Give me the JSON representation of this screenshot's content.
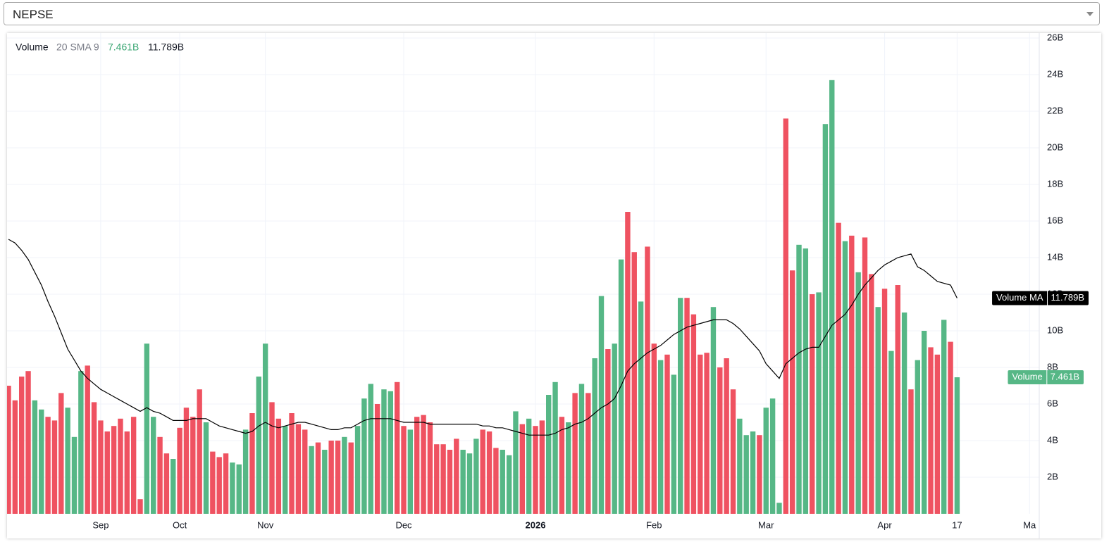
{
  "symbol": "NEPSE",
  "chart_data": {
    "type": "bar",
    "legend_params": "20 SMA 9",
    "categories": [
      null,
      null,
      null,
      null,
      null,
      null,
      null,
      null,
      null,
      null,
      null,
      null,
      null,
      null,
      "Sep",
      null,
      null,
      null,
      null,
      null,
      null,
      null,
      null,
      null,
      null,
      null,
      "Oct",
      null,
      null,
      null,
      null,
      null,
      null,
      null,
      null,
      null,
      null,
      null,
      null,
      "Nov",
      null,
      null,
      null,
      null,
      null,
      null,
      null,
      null,
      null,
      null,
      null,
      null,
      null,
      null,
      null,
      null,
      null,
      null,
      null,
      null,
      "Dec",
      null,
      null,
      null,
      null,
      null,
      null,
      null,
      null,
      null,
      null,
      null,
      null,
      null,
      null,
      null,
      null,
      null,
      null,
      null,
      "2026",
      null,
      null,
      null,
      null,
      null,
      null,
      null,
      null,
      null,
      null,
      null,
      null,
      null,
      null,
      null,
      null,
      null,
      "Feb",
      null,
      null,
      null,
      null,
      null,
      null,
      null,
      null,
      null,
      null,
      null,
      null,
      null,
      null,
      null,
      null,
      "Mar",
      null,
      null,
      null,
      null,
      null,
      null,
      null,
      null,
      null,
      null,
      null,
      null,
      null,
      null,
      null,
      null,
      null,
      "Apr",
      null,
      null,
      null,
      null,
      null,
      null,
      null,
      null,
      null,
      null,
      "17",
      null,
      null,
      null,
      null,
      null,
      null,
      null,
      null,
      null,
      null,
      "Ma",
      null
    ],
    "series": [
      {
        "name": "Volume",
        "type": "bar",
        "values": [
          7.0,
          6.2,
          7.5,
          7.8,
          6.2,
          5.7,
          5.3,
          5.1,
          6.6,
          5.8,
          4.2,
          7.8,
          8.1,
          6.1,
          5.1,
          4.5,
          4.8,
          5.2,
          4.5,
          5.3,
          0.8,
          9.3,
          5.3,
          4.2,
          3.3,
          3.0,
          4.7,
          5.8,
          5.3,
          6.8,
          5.0,
          3.4,
          3.1,
          3.3,
          2.8,
          2.7,
          4.6,
          5.5,
          7.5,
          9.3,
          6.1,
          5.2,
          4.8,
          5.5,
          4.9,
          4.6,
          3.7,
          3.9,
          3.5,
          4.0,
          4.0,
          4.2,
          3.9,
          4.8,
          6.3,
          7.1,
          6.0,
          6.8,
          6.7,
          7.2,
          4.8,
          4.6,
          5.3,
          5.4,
          5.0,
          3.8,
          3.8,
          3.5,
          4.1,
          3.5,
          3.3,
          4.1,
          4.6,
          4.5,
          3.6,
          3.5,
          3.2,
          5.6,
          4.9,
          5.2,
          4.8,
          5.1,
          6.5,
          7.2,
          5.3,
          5.0,
          6.6,
          7.1,
          6.6,
          8.5,
          11.9,
          9.0,
          9.3,
          13.9,
          16.5,
          14.3,
          11.6,
          14.6,
          9.3,
          8.4,
          8.7,
          7.6,
          11.8,
          11.8,
          10.9,
          8.7,
          8.8,
          11.3,
          8.0,
          8.5,
          6.8,
          5.2,
          4.3,
          4.5,
          4.3,
          5.8,
          6.3,
          0.6,
          21.6,
          13.3,
          14.7,
          14.5,
          12.0,
          12.1,
          21.3,
          23.7,
          15.9,
          14.9,
          15.2,
          13.2,
          15.1,
          13.1,
          11.3,
          12.3,
          8.9,
          12.5,
          11.0,
          6.8,
          8.4,
          10.0,
          9.1,
          8.7,
          10.6,
          9.4,
          7.461,
          null,
          null,
          null,
          null,
          null,
          null,
          null,
          null,
          null,
          null,
          null,
          null
        ],
        "colors": [
          "#ef5261",
          "#ef5261",
          "#ef5261",
          "#ef5261",
          "#56b786",
          "#56b786",
          "#ef5261",
          "#ef5261",
          "#ef5261",
          "#56b786",
          "#56b786",
          "#56b786",
          "#ef5261",
          "#ef5261",
          "#ef5261",
          "#ef5261",
          "#ef5261",
          "#ef5261",
          "#ef5261",
          "#ef5261",
          "#ef5261",
          "#56b786",
          "#56b786",
          "#ef5261",
          "#ef5261",
          "#56b786",
          "#ef5261",
          "#ef5261",
          "#ef5261",
          "#ef5261",
          "#56b786",
          "#ef5261",
          "#ef5261",
          "#ef5261",
          "#56b786",
          "#56b786",
          "#56b786",
          "#ef5261",
          "#56b786",
          "#56b786",
          "#ef5261",
          "#ef5261",
          "#56b786",
          "#ef5261",
          "#ef5261",
          "#ef5261",
          "#56b786",
          "#ef5261",
          "#56b786",
          "#ef5261",
          "#ef5261",
          "#56b786",
          "#ef5261",
          "#56b786",
          "#56b786",
          "#56b786",
          "#ef5261",
          "#56b786",
          "#56b786",
          "#ef5261",
          "#ef5261",
          "#56b786",
          "#ef5261",
          "#ef5261",
          "#ef5261",
          "#ef5261",
          "#ef5261",
          "#ef5261",
          "#ef5261",
          "#56b786",
          "#56b786",
          "#56b786",
          "#ef5261",
          "#ef5261",
          "#ef5261",
          "#56b786",
          "#56b786",
          "#56b786",
          "#ef5261",
          "#56b786",
          "#ef5261",
          "#ef5261",
          "#56b786",
          "#56b786",
          "#ef5261",
          "#56b786",
          "#ef5261",
          "#56b786",
          "#ef5261",
          "#56b786",
          "#56b786",
          "#ef5261",
          "#56b786",
          "#56b786",
          "#ef5261",
          "#ef5261",
          "#56b786",
          "#ef5261",
          "#ef5261",
          "#56b786",
          "#ef5261",
          "#56b786",
          "#56b786",
          "#ef5261",
          "#ef5261",
          "#ef5261",
          "#ef5261",
          "#56b786",
          "#ef5261",
          "#ef5261",
          "#ef5261",
          "#56b786",
          "#56b786",
          "#56b786",
          "#ef5261",
          "#56b786",
          "#56b786",
          "#56b786",
          "#ef5261",
          "#ef5261",
          "#56b786",
          "#56b786",
          "#ef5261",
          "#56b786",
          "#56b786",
          "#56b786",
          "#ef5261",
          "#56b786",
          "#ef5261",
          "#56b786",
          "#ef5261",
          "#ef5261",
          "#56b786",
          "#ef5261",
          "#56b786",
          "#ef5261",
          "#56b786",
          "#ef5261",
          "#56b786",
          "#56b786",
          "#ef5261",
          "#ef5261",
          "#56b786",
          "#ef5261",
          "#56b786",
          null,
          null,
          null,
          null,
          null,
          null,
          null,
          null,
          null,
          null,
          null,
          null
        ],
        "tag_color": "#56b786",
        "value_labels": [
          null,
          null,
          null,
          null,
          null,
          null,
          null,
          null,
          null,
          null,
          null,
          null,
          null,
          null,
          null,
          null,
          null,
          null,
          null,
          null,
          null,
          null,
          null,
          null,
          null,
          null,
          null,
          null,
          null,
          null,
          null,
          null,
          null,
          null,
          null,
          null,
          null,
          null,
          null,
          null,
          null,
          null,
          null,
          null,
          null,
          null,
          null,
          null,
          null,
          null,
          null,
          null,
          null,
          null,
          null,
          null,
          null,
          null,
          null,
          null,
          null,
          null,
          null,
          null,
          null,
          null,
          null,
          null,
          null,
          null,
          null,
          null,
          null,
          null,
          null,
          null,
          null,
          null,
          null,
          null,
          null,
          null,
          null,
          null,
          null,
          null,
          null,
          null,
          null,
          null,
          null,
          null,
          null,
          null,
          null,
          null,
          null,
          null,
          null,
          null,
          null,
          null,
          null,
          null,
          null,
          null,
          null,
          null,
          null,
          null,
          null,
          null,
          null,
          null,
          null,
          null,
          null,
          null,
          null,
          null,
          null,
          null,
          null,
          null,
          null,
          null,
          null,
          null,
          null,
          null,
          null,
          null,
          null,
          null,
          null,
          null,
          null,
          null,
          null,
          null,
          null,
          null,
          null,
          null,
          "7.461B",
          null,
          null,
          null,
          null,
          null,
          null,
          null,
          null,
          null,
          null,
          null,
          null
        ]
      },
      {
        "name": "Volume MA",
        "type": "line",
        "color": "#000000",
        "tag_color": "#000000",
        "values": [
          15.0,
          14.8,
          14.4,
          13.9,
          13.2,
          12.5,
          11.6,
          10.8,
          9.9,
          9.0,
          8.4,
          7.8,
          7.4,
          7.1,
          6.8,
          6.6,
          6.4,
          6.2,
          6.0,
          5.8,
          5.6,
          5.8,
          5.6,
          5.5,
          5.3,
          5.1,
          5.1,
          5.1,
          5.2,
          5.2,
          5.2,
          5.0,
          4.8,
          4.7,
          4.6,
          4.5,
          4.4,
          4.5,
          4.8,
          5.0,
          4.8,
          4.7,
          4.8,
          4.9,
          5.0,
          5.0,
          4.9,
          4.8,
          4.7,
          4.6,
          4.6,
          4.7,
          4.7,
          4.9,
          5.1,
          5.2,
          5.2,
          5.2,
          5.2,
          5.1,
          5.0,
          5.0,
          5.0,
          5.0,
          4.9,
          4.9,
          4.9,
          4.9,
          4.9,
          4.9,
          4.9,
          4.9,
          4.8,
          4.8,
          4.7,
          4.7,
          4.6,
          4.5,
          4.4,
          4.3,
          4.3,
          4.3,
          4.3,
          4.4,
          4.6,
          4.7,
          4.9,
          5.0,
          5.2,
          5.5,
          5.8,
          6.0,
          6.3,
          7.0,
          7.8,
          8.2,
          8.5,
          8.8,
          9.0,
          9.2,
          9.5,
          9.8,
          10.0,
          10.2,
          10.3,
          10.4,
          10.5,
          10.6,
          10.6,
          10.6,
          10.4,
          10.1,
          9.7,
          9.3,
          8.9,
          8.2,
          7.8,
          7.4,
          8.2,
          8.5,
          8.8,
          9.0,
          9.1,
          9.1,
          9.7,
          10.3,
          10.6,
          10.9,
          11.4,
          12.0,
          12.5,
          12.9,
          13.3,
          13.6,
          13.8,
          14.0,
          14.1,
          14.2,
          13.5,
          13.3,
          13.0,
          12.7,
          12.6,
          12.5,
          11.789,
          null,
          null,
          null,
          null,
          null,
          null,
          null,
          null,
          null,
          null,
          null,
          null
        ],
        "value_labels": [
          null,
          null,
          null,
          null,
          null,
          null,
          null,
          null,
          null,
          null,
          null,
          null,
          null,
          null,
          null,
          null,
          null,
          null,
          null,
          null,
          null,
          null,
          null,
          null,
          null,
          null,
          null,
          null,
          null,
          null,
          null,
          null,
          null,
          null,
          null,
          null,
          null,
          null,
          null,
          null,
          null,
          null,
          null,
          null,
          null,
          null,
          null,
          null,
          null,
          null,
          null,
          null,
          null,
          null,
          null,
          null,
          null,
          null,
          null,
          null,
          null,
          null,
          null,
          null,
          null,
          null,
          null,
          null,
          null,
          null,
          null,
          null,
          null,
          null,
          null,
          null,
          null,
          null,
          null,
          null,
          null,
          null,
          null,
          null,
          null,
          null,
          null,
          null,
          null,
          null,
          null,
          null,
          null,
          null,
          null,
          null,
          null,
          null,
          null,
          null,
          null,
          null,
          null,
          null,
          null,
          null,
          null,
          null,
          null,
          null,
          null,
          null,
          null,
          null,
          null,
          null,
          null,
          null,
          null,
          null,
          null,
          null,
          null,
          null,
          null,
          null,
          null,
          null,
          null,
          null,
          null,
          null,
          null,
          null,
          null,
          null,
          null,
          null,
          null,
          null,
          null,
          null,
          null,
          null,
          "11.789B",
          null,
          null,
          null,
          null,
          null,
          null,
          null,
          null,
          null,
          null,
          null,
          null
        ]
      }
    ],
    "ylim": [
      0,
      26.27
    ],
    "yticks": [
      {
        "value": 2,
        "label": "2B"
      },
      {
        "value": 4,
        "label": "4B"
      },
      {
        "value": 6,
        "label": "6B"
      },
      {
        "value": 8,
        "label": "8B"
      },
      {
        "value": 10,
        "label": "10B"
      },
      {
        "value": 12,
        "label": "12B"
      },
      {
        "value": 14,
        "label": "14B"
      },
      {
        "value": 16,
        "label": "16B"
      },
      {
        "value": 18,
        "label": "18B"
      },
      {
        "value": 20,
        "label": "20B"
      },
      {
        "value": 22,
        "label": "22B"
      },
      {
        "value": 24,
        "label": "24B"
      },
      {
        "value": 26,
        "label": "26B"
      }
    ],
    "grid": true
  }
}
